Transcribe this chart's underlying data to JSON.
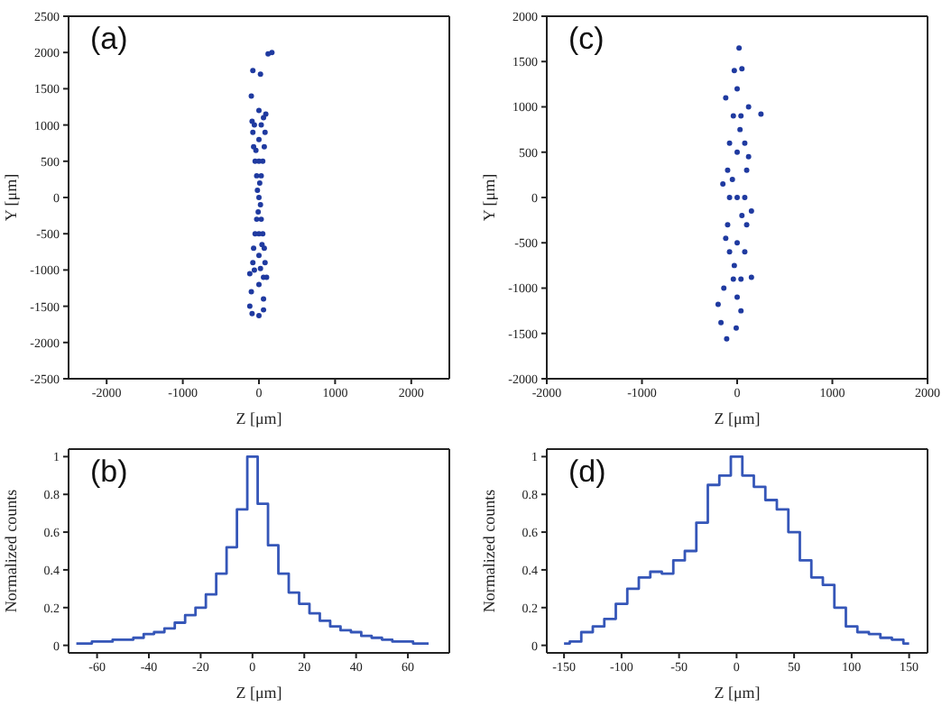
{
  "chart_data": [
    {
      "type": "scatter",
      "annotations": [
        "(a)"
      ],
      "xlabel": "Z [μm]",
      "ylabel": "Y [μm]",
      "marker": "circle",
      "color": "#1f3aa0",
      "x": [
        0,
        -20,
        20,
        -30,
        30,
        -50,
        50,
        -70,
        70,
        -80,
        80,
        -60,
        60,
        0,
        -30,
        30,
        -50,
        50,
        -70,
        70,
        -80,
        80,
        -60,
        60,
        0,
        -100,
        20,
        120,
        170,
        -80,
        -100,
        60,
        -90,
        0,
        60,
        -120,
        0,
        0,
        0,
        0,
        -40,
        40,
        10,
        -10,
        30,
        20,
        -120,
        100,
        90,
        -90
      ],
      "values": [
        0,
        100,
        -100,
        300,
        300,
        500,
        500,
        700,
        700,
        900,
        900,
        1000,
        1100,
        1200,
        -300,
        -300,
        -500,
        -500,
        -700,
        -700,
        -900,
        -900,
        -1000,
        -1100,
        -1200,
        1400,
        1700,
        1980,
        2000,
        1750,
        -1300,
        -1400,
        -1600,
        -1630,
        -1550,
        -1500,
        500,
        -500,
        800,
        -800,
        650,
        -650,
        200,
        -200,
        1000,
        -980,
        -1050,
        -1100,
        1150,
        1050
      ],
      "xlim": [
        -2500,
        2500
      ],
      "ylim": [
        -2500,
        2500
      ],
      "xticks": [
        -2000,
        -1000,
        0,
        1000,
        2000
      ],
      "yticks": [
        -2500,
        -2000,
        -1500,
        -1000,
        -500,
        0,
        500,
        1000,
        1500,
        2000,
        2500
      ]
    },
    {
      "type": "scatter",
      "annotations": [
        "(c)"
      ],
      "xlabel": "Z [μm]",
      "ylabel": "Y [μm]",
      "marker": "circle",
      "color": "#1f3aa0",
      "x": [
        0,
        -80,
        80,
        -100,
        100,
        -100,
        100,
        -80,
        80,
        -80,
        80,
        -40,
        40,
        -40,
        40,
        0,
        -30,
        50,
        20,
        250,
        -120,
        120,
        -140,
        150,
        -200,
        -170,
        -110,
        -10,
        40,
        0,
        0,
        0,
        -50,
        50,
        30,
        -30,
        -150,
        150,
        -120,
        120
      ],
      "values": [
        0,
        0,
        0,
        300,
        300,
        -300,
        -300,
        600,
        600,
        -600,
        -600,
        900,
        900,
        -900,
        -900,
        1200,
        1400,
        1420,
        1650,
        920,
        1100,
        1000,
        -1000,
        -880,
        -1180,
        -1380,
        -1560,
        -1440,
        -1250,
        -1100,
        500,
        -500,
        200,
        -200,
        750,
        -750,
        150,
        -150,
        -450,
        450
      ],
      "xlim": [
        -2000,
        2000
      ],
      "ylim": [
        -2000,
        2000
      ],
      "xticks": [
        -2000,
        -1000,
        0,
        1000,
        2000
      ],
      "yticks": [
        -2000,
        -1500,
        -1000,
        -500,
        0,
        500,
        1000,
        1500,
        2000
      ]
    },
    {
      "type": "step",
      "annotations": [
        "(b)"
      ],
      "xlabel": "Z [μm]",
      "ylabel": "Normalized counts",
      "color": "#3556b8",
      "x": [
        -68,
        -64,
        -60,
        -56,
        -52,
        -48,
        -44,
        -40,
        -36,
        -32,
        -28,
        -24,
        -20,
        -16,
        -12,
        -8,
        -4,
        0,
        4,
        8,
        12,
        16,
        20,
        24,
        28,
        32,
        36,
        40,
        44,
        48,
        52,
        56,
        60,
        64,
        68
      ],
      "values": [
        0.01,
        0.01,
        0.02,
        0.02,
        0.03,
        0.03,
        0.04,
        0.06,
        0.07,
        0.09,
        0.12,
        0.16,
        0.2,
        0.27,
        0.38,
        0.52,
        0.72,
        1.0,
        0.75,
        0.53,
        0.38,
        0.28,
        0.22,
        0.17,
        0.13,
        0.1,
        0.08,
        0.07,
        0.05,
        0.04,
        0.03,
        0.02,
        0.02,
        0.01,
        0.01
      ],
      "xlim": [
        -71,
        76
      ],
      "ylim": [
        -0.04,
        1.04
      ],
      "xticks": [
        -60,
        -40,
        -20,
        0,
        20,
        40,
        60
      ],
      "yticks": [
        0,
        0.2,
        0.4,
        0.6,
        0.8,
        1
      ]
    },
    {
      "type": "step",
      "annotations": [
        "(d)"
      ],
      "xlabel": "Z [μm]",
      "ylabel": "Normalized counts",
      "color": "#3556b8",
      "x": [
        -150,
        -140,
        -130,
        -120,
        -110,
        -100,
        -90,
        -80,
        -70,
        -60,
        -50,
        -40,
        -30,
        -20,
        -10,
        0,
        10,
        20,
        30,
        40,
        50,
        60,
        70,
        80,
        90,
        100,
        110,
        120,
        130,
        140,
        150
      ],
      "values": [
        0.01,
        0.02,
        0.07,
        0.1,
        0.14,
        0.22,
        0.3,
        0.36,
        0.39,
        0.38,
        0.45,
        0.5,
        0.65,
        0.85,
        0.9,
        1.0,
        0.9,
        0.84,
        0.77,
        0.72,
        0.6,
        0.45,
        0.36,
        0.32,
        0.2,
        0.1,
        0.07,
        0.06,
        0.04,
        0.03,
        0.01
      ],
      "xlim": [
        -165,
        166
      ],
      "ylim": [
        -0.04,
        1.04
      ],
      "xticks": [
        -150,
        -100,
        -50,
        0,
        50,
        100,
        150
      ],
      "yticks": [
        0,
        0.2,
        0.4,
        0.6,
        0.8,
        1
      ]
    }
  ]
}
